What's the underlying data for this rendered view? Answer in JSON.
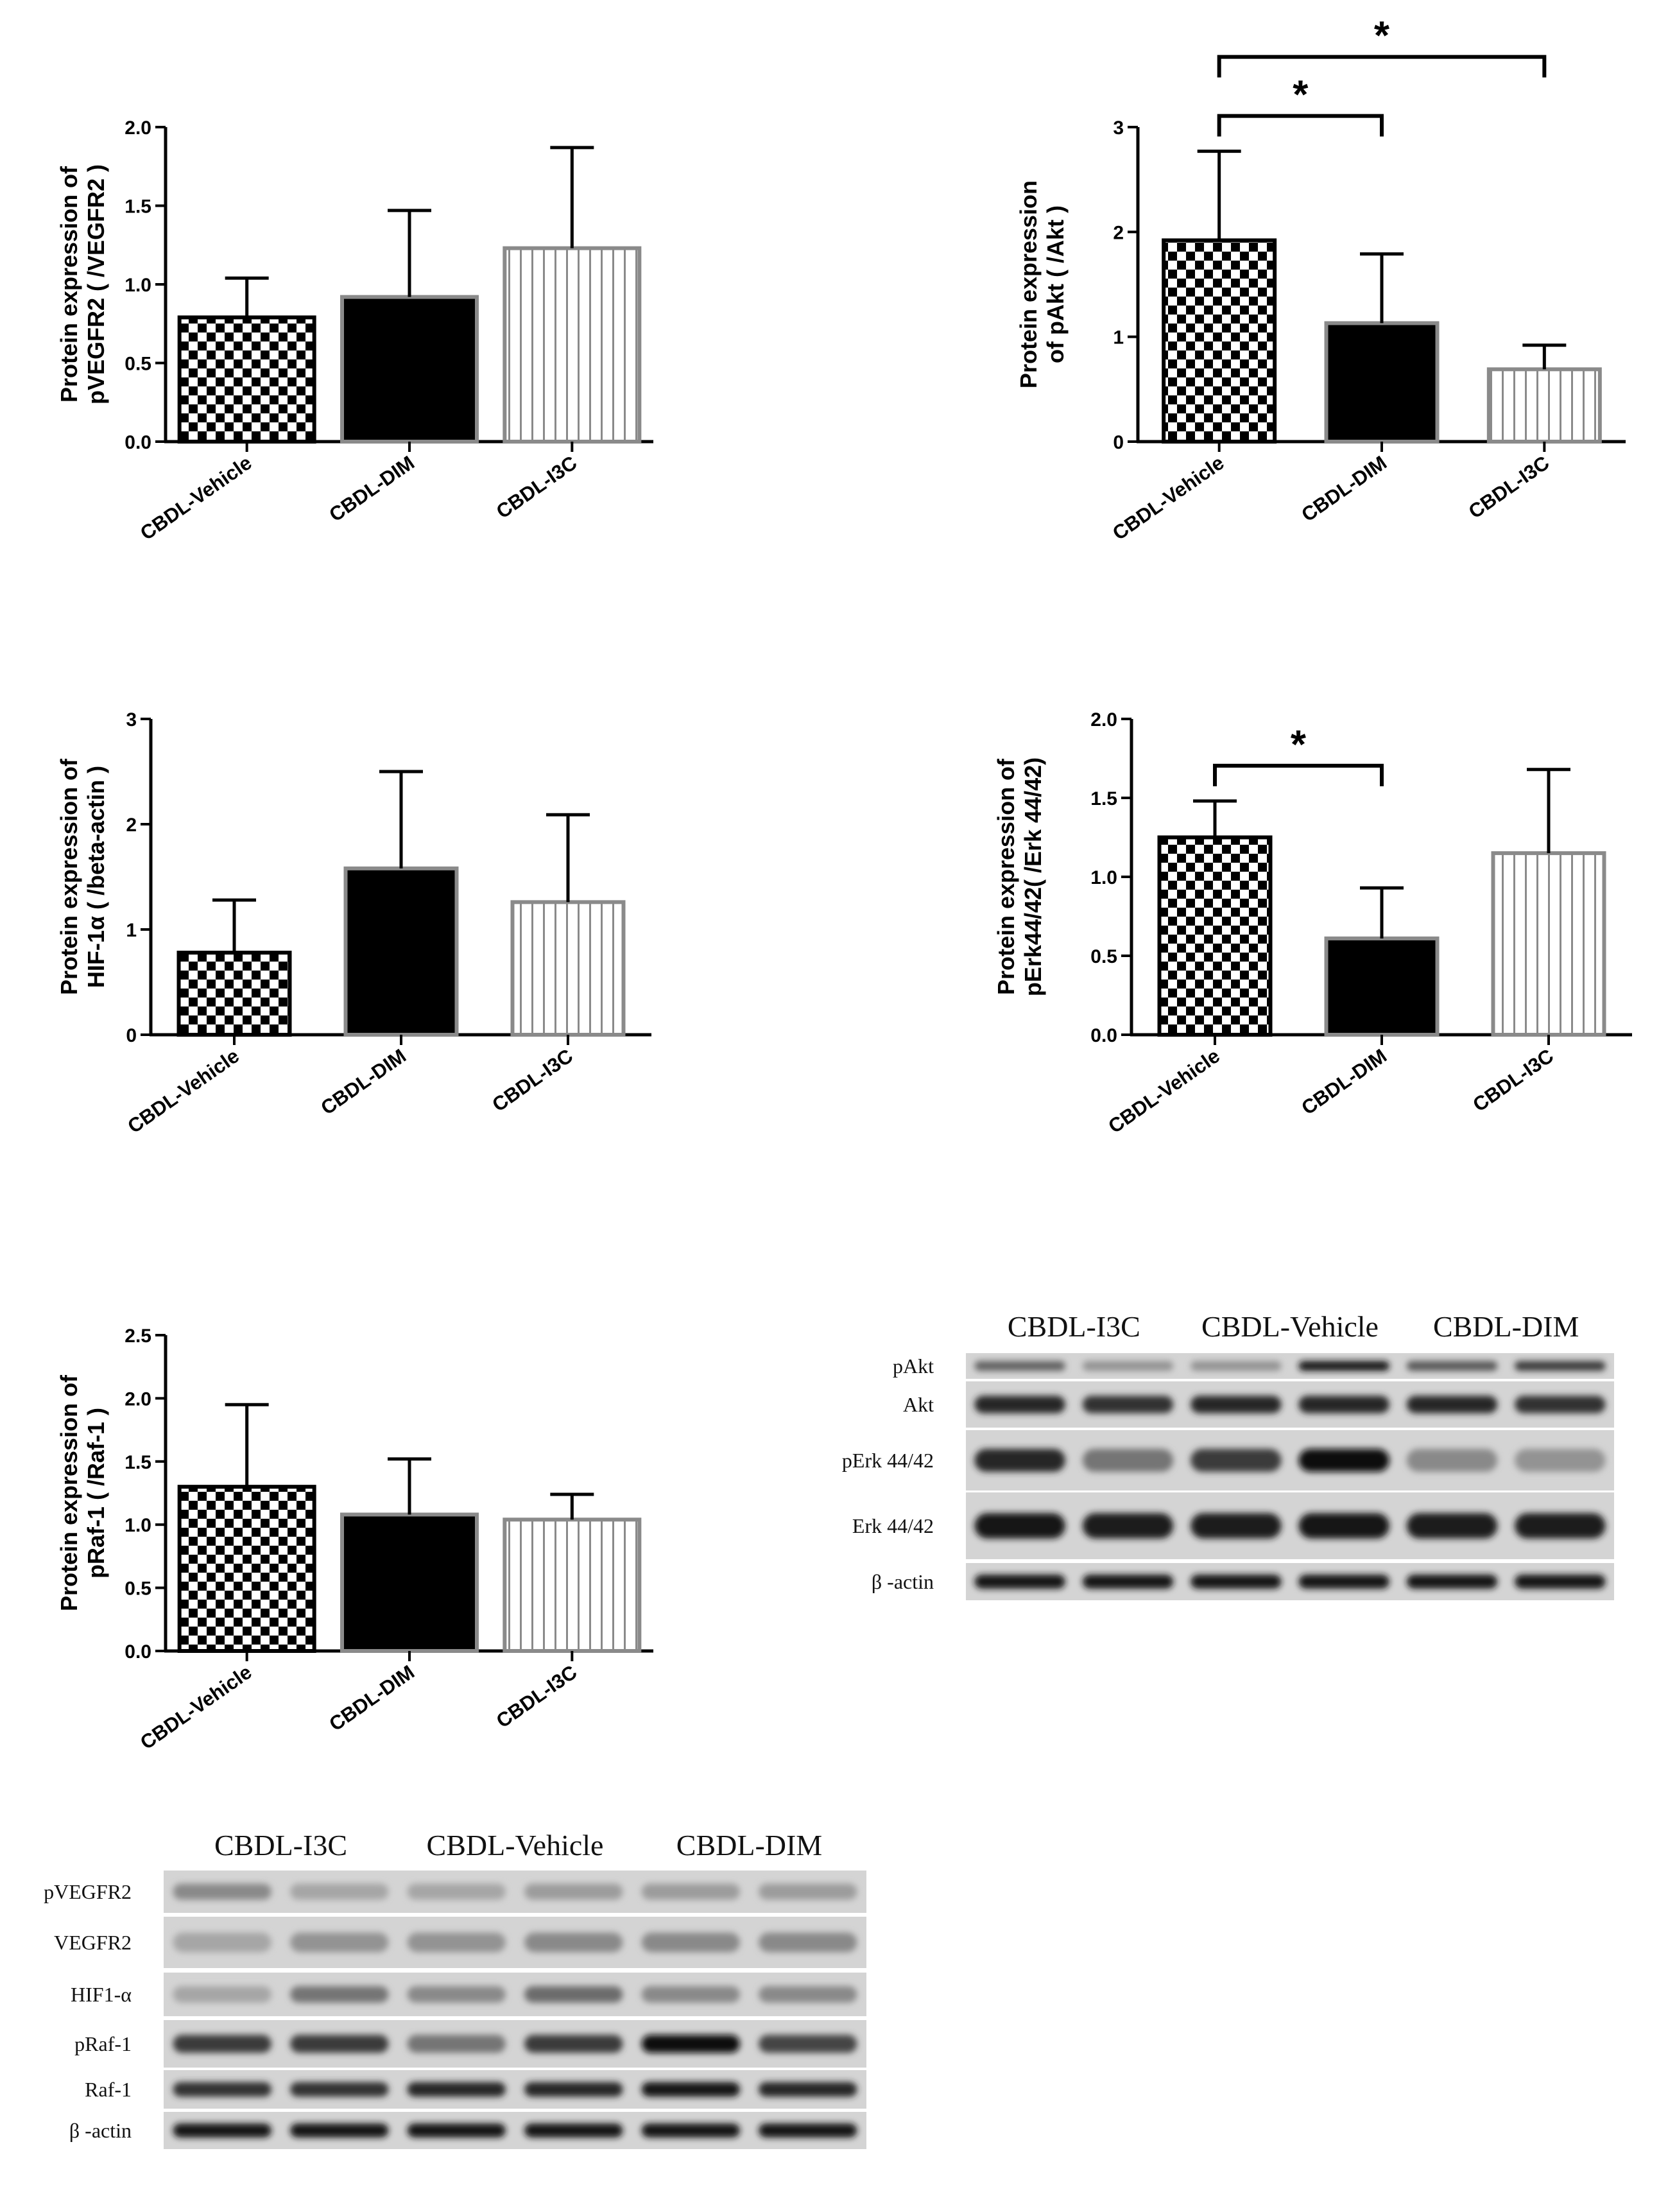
{
  "chart_data": [
    {
      "type": "bar",
      "categories": [
        "CBDL-Vehicle",
        "CBDL-DIM",
        "CBDL-I3C"
      ],
      "values": [
        0.79,
        0.92,
        1.23
      ],
      "errors": [
        0.25,
        0.55,
        0.64
      ],
      "ylabel_lines": [
        "Protein expression of",
        "pVEGFR2 ( /VEGFR2 )"
      ],
      "ylim": [
        0,
        2.0
      ],
      "yticks": [
        "0.0",
        "0.5",
        "1.0",
        "1.5",
        "2.0"
      ],
      "significance": []
    },
    {
      "type": "bar",
      "categories": [
        "CBDL-Vehicle",
        "CBDL-DIM",
        "CBDL-I3C"
      ],
      "values": [
        1.92,
        1.13,
        0.69
      ],
      "errors": [
        0.85,
        0.66,
        0.23
      ],
      "ylabel_lines": [
        "Protein expression",
        "of pAkt ( /Akt )"
      ],
      "ylim": [
        0,
        3
      ],
      "yticks": [
        "0",
        "1",
        "2",
        "3"
      ],
      "significance": [
        {
          "from": 0,
          "to": 1,
          "label": "*"
        },
        {
          "from": 0,
          "to": 2,
          "label": "*"
        }
      ]
    },
    {
      "type": "bar",
      "categories": [
        "CBDL-Vehicle",
        "CBDL-DIM",
        "CBDL-I3C"
      ],
      "values": [
        0.78,
        1.58,
        1.26
      ],
      "errors": [
        0.5,
        0.92,
        0.83
      ],
      "ylabel_lines": [
        "Protein expression of",
        "HIF-1α ( /beta-actin )"
      ],
      "ylim": [
        0,
        3
      ],
      "yticks": [
        "0",
        "1",
        "2",
        "3"
      ],
      "significance": []
    },
    {
      "type": "bar",
      "categories": [
        "CBDL-Vehicle",
        "CBDL-DIM",
        "CBDL-I3C"
      ],
      "values": [
        1.25,
        0.61,
        1.15
      ],
      "errors": [
        0.23,
        0.32,
        0.53
      ],
      "ylabel_lines": [
        "Protein expression of",
        "pErk44/42( /Erk 44/42)"
      ],
      "ylim": [
        0,
        2.0
      ],
      "yticks": [
        "0.0",
        "0.5",
        "1.0",
        "1.5",
        "2.0"
      ],
      "significance": [
        {
          "from": 0,
          "to": 1,
          "label": "*"
        }
      ]
    },
    {
      "type": "bar",
      "categories": [
        "CBDL-Vehicle",
        "CBDL-DIM",
        "CBDL-I3C"
      ],
      "values": [
        1.3,
        1.08,
        1.04
      ],
      "errors": [
        0.65,
        0.44,
        0.2
      ],
      "ylabel_lines": [
        "Protein expression of",
        "pRaf-1 ( /Raf-1 )"
      ],
      "ylim": [
        0,
        2.5
      ],
      "yticks": [
        "0.0",
        "0.5",
        "1.0",
        "1.5",
        "2.0",
        "2.5"
      ],
      "significance": []
    }
  ],
  "blots": [
    {
      "groups": [
        "CBDL-I3C",
        "CBDL-Vehicle",
        "CBDL-DIM"
      ],
      "rows": [
        {
          "label": "pAkt",
          "intensity": [
            0.55,
            0.3,
            0.3,
            0.95,
            0.6,
            0.75
          ]
        },
        {
          "label": "Akt",
          "intensity": [
            0.85,
            0.8,
            0.85,
            0.85,
            0.85,
            0.8
          ]
        },
        {
          "label": "pErk 44/42",
          "intensity": [
            0.85,
            0.45,
            0.75,
            1.0,
            0.35,
            0.3
          ]
        },
        {
          "label": "Erk 44/42",
          "intensity": [
            0.95,
            0.9,
            0.9,
            0.95,
            0.9,
            0.9
          ]
        },
        {
          "label": "β -actin",
          "intensity": [
            0.95,
            0.95,
            0.95,
            0.95,
            0.95,
            0.95
          ]
        }
      ]
    },
    {
      "groups": [
        "CBDL-I3C",
        "CBDL-Vehicle",
        "CBDL-DIM"
      ],
      "rows": [
        {
          "label": "pVEGFR2",
          "intensity": [
            0.35,
            0.2,
            0.2,
            0.25,
            0.25,
            0.25
          ]
        },
        {
          "label": "VEGFR2",
          "intensity": [
            0.2,
            0.3,
            0.3,
            0.35,
            0.35,
            0.35
          ]
        },
        {
          "label": "HIF1-α",
          "intensity": [
            0.2,
            0.45,
            0.35,
            0.5,
            0.35,
            0.35
          ]
        },
        {
          "label": "pRaf-1",
          "intensity": [
            0.75,
            0.75,
            0.45,
            0.75,
            1.0,
            0.7
          ]
        },
        {
          "label": "Raf-1",
          "intensity": [
            0.8,
            0.8,
            0.85,
            0.85,
            0.95,
            0.85
          ]
        },
        {
          "label": "β -actin",
          "intensity": [
            0.95,
            0.95,
            0.95,
            0.95,
            0.95,
            0.95
          ]
        }
      ]
    }
  ]
}
